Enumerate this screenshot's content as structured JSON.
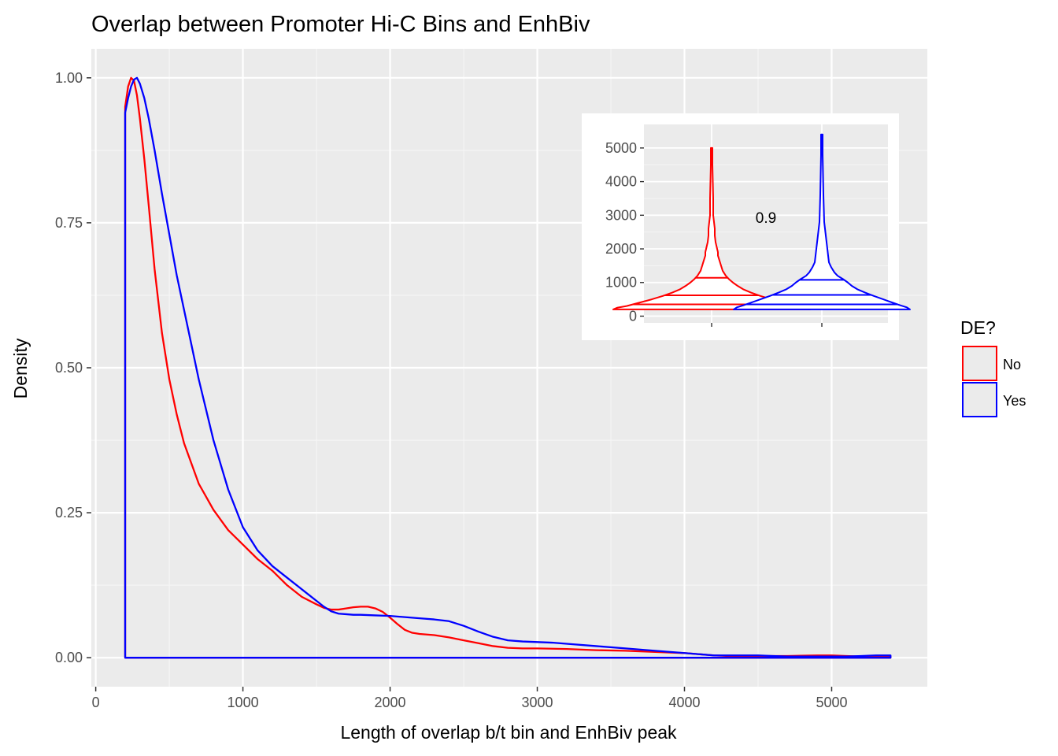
{
  "chart_data": [
    {
      "type": "line",
      "subtype": "density",
      "title": "Overlap between Promoter Hi-C Bins and EnhBiv",
      "xlabel": "Length of overlap b/t bin and EnhBiv peak",
      "ylabel": "Density",
      "xlim": [
        -30,
        5650
      ],
      "ylim": [
        -0.05,
        1.05
      ],
      "x_ticks": [
        0,
        1000,
        2000,
        3000,
        4000,
        5000
      ],
      "x_tick_labels": [
        "0",
        "1000",
        "2000",
        "3000",
        "4000",
        "5000"
      ],
      "y_ticks": [
        0,
        0.25,
        0.5,
        0.75,
        1.0
      ],
      "y_tick_labels": [
        "0.00",
        "0.25",
        "0.50",
        "0.75",
        "1.00"
      ],
      "grid": true,
      "legend": {
        "title": "DE?",
        "position": "right",
        "entries": [
          "No",
          "Yes"
        ]
      },
      "series": [
        {
          "name": "No",
          "color": "#ff0000",
          "x": [
            200,
            200,
            220,
            240,
            260,
            280,
            300,
            330,
            360,
            400,
            450,
            500,
            550,
            600,
            700,
            800,
            900,
            1000,
            1100,
            1200,
            1300,
            1400,
            1500,
            1550,
            1600,
            1650,
            1700,
            1750,
            1800,
            1850,
            1900,
            1950,
            2000,
            2050,
            2100,
            2150,
            2200,
            2300,
            2400,
            2500,
            2600,
            2700,
            2800,
            2900,
            3000,
            3200,
            3400,
            3600,
            3800,
            4000,
            4100,
            4200,
            4300,
            4500,
            4700,
            4900,
            5000,
            5100,
            5200,
            5300,
            5400,
            5400
          ],
          "y": [
            0,
            0.95,
            0.985,
            1.0,
            0.995,
            0.97,
            0.93,
            0.86,
            0.78,
            0.67,
            0.56,
            0.48,
            0.42,
            0.37,
            0.3,
            0.255,
            0.22,
            0.195,
            0.17,
            0.15,
            0.125,
            0.105,
            0.092,
            0.086,
            0.083,
            0.083,
            0.085,
            0.087,
            0.088,
            0.088,
            0.085,
            0.079,
            0.069,
            0.058,
            0.048,
            0.043,
            0.041,
            0.039,
            0.035,
            0.03,
            0.025,
            0.02,
            0.017,
            0.016,
            0.016,
            0.015,
            0.013,
            0.012,
            0.01,
            0.008,
            0.006,
            0.004,
            0.003,
            0.003,
            0.003,
            0.004,
            0.004,
            0.003,
            0.002,
            0.002,
            0.002,
            0
          ]
        },
        {
          "name": "Yes",
          "color": "#0000ff",
          "x": [
            200,
            200,
            220,
            240,
            260,
            280,
            300,
            330,
            360,
            400,
            450,
            500,
            550,
            600,
            700,
            800,
            900,
            1000,
            1100,
            1200,
            1300,
            1400,
            1500,
            1550,
            1600,
            1650,
            1700,
            1750,
            1800,
            1900,
            2000,
            2100,
            2200,
            2300,
            2400,
            2500,
            2600,
            2700,
            2800,
            2900,
            3000,
            3100,
            3200,
            3400,
            3600,
            3800,
            4000,
            4100,
            4200,
            4300,
            4400,
            4500,
            4600,
            4700,
            4800,
            4900,
            5000,
            5100,
            5200,
            5300,
            5400,
            5400
          ],
          "y": [
            0,
            0.94,
            0.965,
            0.985,
            0.997,
            1.0,
            0.99,
            0.965,
            0.93,
            0.875,
            0.8,
            0.73,
            0.66,
            0.6,
            0.48,
            0.375,
            0.29,
            0.225,
            0.185,
            0.158,
            0.138,
            0.118,
            0.098,
            0.088,
            0.08,
            0.076,
            0.075,
            0.074,
            0.074,
            0.073,
            0.072,
            0.07,
            0.068,
            0.066,
            0.063,
            0.055,
            0.045,
            0.036,
            0.03,
            0.028,
            0.027,
            0.026,
            0.024,
            0.02,
            0.016,
            0.012,
            0.008,
            0.006,
            0.004,
            0.004,
            0.004,
            0.004,
            0.003,
            0.002,
            0.002,
            0.002,
            0.002,
            0.002,
            0.003,
            0.004,
            0.004,
            0
          ]
        }
      ]
    },
    {
      "type": "violin",
      "position": "top-right inset",
      "ylim": [
        -200,
        5700
      ],
      "y_ticks": [
        0,
        1000,
        2000,
        3000,
        4000,
        5000
      ],
      "y_tick_labels": [
        "0",
        "1000",
        "2000",
        "3000",
        "4000",
        "5000"
      ],
      "grid": true,
      "annotation": "0.9",
      "series": [
        {
          "name": "No",
          "color": "#ff0000",
          "min": 200,
          "max": 5000,
          "quantiles": [
            350,
            620,
            1140
          ],
          "profile": [
            [
              200,
              125
            ],
            [
              250,
              120
            ],
            [
              300,
              108
            ],
            [
              400,
              92
            ],
            [
              500,
              76
            ],
            [
              600,
              62
            ],
            [
              700,
              50
            ],
            [
              800,
              40
            ],
            [
              900,
              33
            ],
            [
              1000,
              27
            ],
            [
              1100,
              22
            ],
            [
              1200,
              18
            ],
            [
              1350,
              14
            ],
            [
              1500,
              12
            ],
            [
              1650,
              10
            ],
            [
              1800,
              8
            ],
            [
              1900,
              8
            ],
            [
              2000,
              7
            ],
            [
              2200,
              5
            ],
            [
              2400,
              4
            ],
            [
              2600,
              4
            ],
            [
              2800,
              3
            ],
            [
              3000,
              2
            ],
            [
              3500,
              2
            ],
            [
              4000,
              1.5
            ],
            [
              4500,
              1
            ],
            [
              5000,
              1
            ]
          ]
        },
        {
          "name": "Yes",
          "color": "#0000ff",
          "min": 200,
          "max": 5400,
          "quantiles": [
            350,
            630,
            1080
          ],
          "profile": [
            [
              200,
              112
            ],
            [
              260,
              108
            ],
            [
              320,
              100
            ],
            [
              400,
              90
            ],
            [
              500,
              78
            ],
            [
              600,
              66
            ],
            [
              700,
              55
            ],
            [
              800,
              45
            ],
            [
              900,
              38
            ],
            [
              1000,
              33
            ],
            [
              1100,
              27
            ],
            [
              1200,
              20
            ],
            [
              1300,
              16
            ],
            [
              1450,
              12
            ],
            [
              1600,
              9
            ],
            [
              1800,
              8
            ],
            [
              2000,
              7
            ],
            [
              2200,
              6
            ],
            [
              2400,
              5
            ],
            [
              2600,
              4
            ],
            [
              2800,
              3
            ],
            [
              3200,
              2.5
            ],
            [
              3600,
              2
            ],
            [
              4200,
              1.5
            ],
            [
              4800,
              1
            ],
            [
              5400,
              1
            ]
          ]
        }
      ]
    }
  ]
}
